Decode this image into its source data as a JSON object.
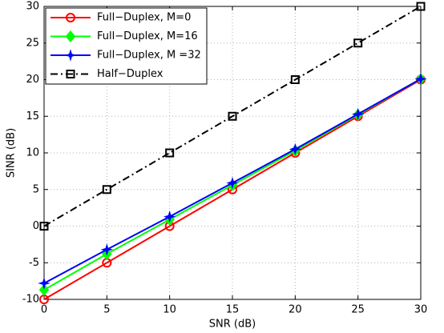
{
  "chart_data": {
    "type": "line",
    "x_label": "SNR (dB)",
    "y_label": "SINR (dB)",
    "x": [
      0,
      5,
      10,
      15,
      20,
      25,
      30
    ],
    "series": [
      {
        "name": "Full−Duplex, M=0",
        "color": "#ff0000",
        "marker": "circle",
        "dash": "solid",
        "values": [
          -10,
          -5,
          0,
          5,
          10,
          15,
          20
        ]
      },
      {
        "name": "Full−Duplex, M=16",
        "color": "#00ff00",
        "marker": "diamond",
        "dash": "solid",
        "values": [
          -8.7,
          -3.8,
          0.9,
          5.6,
          10.3,
          15.2,
          20.1
        ]
      },
      {
        "name": "Full−Duplex, M =32",
        "color": "#0000ff",
        "marker": "star",
        "dash": "solid",
        "values": [
          -7.8,
          -3.2,
          1.3,
          5.9,
          10.5,
          15.3,
          20.1
        ]
      },
      {
        "name": "Half−Duplex",
        "color": "#000000",
        "marker": "square",
        "dash": "dashdot",
        "values": [
          0,
          5,
          10,
          15,
          20,
          25,
          30
        ]
      }
    ],
    "xlim": [
      0,
      30
    ],
    "xticks": [
      0,
      5,
      10,
      15,
      20,
      25,
      30
    ],
    "ylim": [
      -10,
      30
    ],
    "yticks": [
      -10,
      -5,
      0,
      5,
      10,
      15,
      20,
      25,
      30
    ],
    "grid": true,
    "legend": "top-left"
  }
}
